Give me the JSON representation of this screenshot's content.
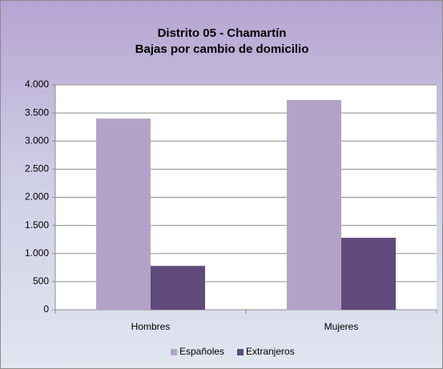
{
  "chart_data": {
    "type": "bar",
    "title": "Distrito 05 - Chamartín",
    "subtitle": "Bajas por cambio de domicilio",
    "categories": [
      "Hombres",
      "Mujeres"
    ],
    "series": [
      {
        "name": "Españoles",
        "color": "#b3a2c7",
        "values": [
          3400,
          3730
        ]
      },
      {
        "name": "Extranjeros",
        "color": "#604a7b",
        "values": [
          780,
          1280
        ]
      }
    ],
    "ylim": [
      0,
      4000
    ],
    "yticks": [
      0,
      500,
      {
        "value": 1000,
        "label": "1.000"
      },
      {
        "value": 1500,
        "label": "1.500"
      },
      {
        "value": 2000,
        "label": "2.000"
      },
      {
        "value": 2500,
        "label": "2.500"
      },
      {
        "value": 3000,
        "label": "3.000"
      },
      {
        "value": 3500,
        "label": "3.500"
      },
      {
        "value": 4000,
        "label": "4.000"
      }
    ],
    "grid": true,
    "legend": "bottom"
  }
}
